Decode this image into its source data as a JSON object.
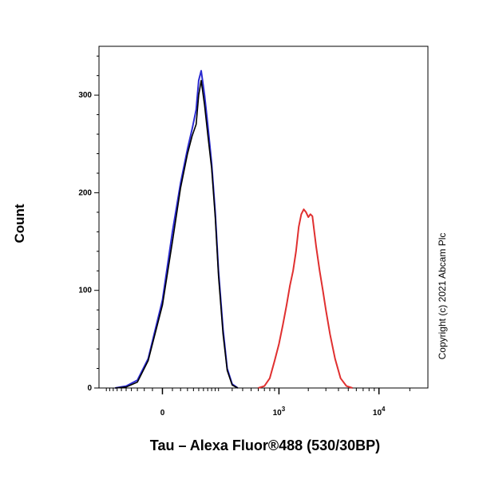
{
  "chart_data": {
    "type": "line",
    "title": "",
    "xlabel": "Tau – Alexa Fluor®488 (530/30BP)",
    "ylabel": "Count",
    "x_scale": "biexponential",
    "ylim": [
      0,
      350
    ],
    "y_ticks": [
      "0",
      "100",
      "200",
      "300"
    ],
    "x_ticks": [
      {
        "base": "0",
        "exp": ""
      },
      {
        "base": "10",
        "exp": "3"
      },
      {
        "base": "10",
        "exp": "4"
      }
    ],
    "annotation": "Copyright (c) 2021 Abcam Plc",
    "grid": false,
    "legend": "none",
    "series": [
      {
        "color": "#2b2bd0",
        "x": [
          -150,
          -100,
          -60,
          -30,
          0,
          20,
          40,
          60,
          75,
          90,
          100,
          110,
          125,
          140,
          160,
          180,
          200,
          230,
          260,
          300,
          350
        ],
        "values": [
          0,
          2,
          8,
          30,
          90,
          160,
          210,
          245,
          265,
          285,
          315,
          325,
          300,
          270,
          230,
          180,
          120,
          60,
          20,
          4,
          0
        ]
      },
      {
        "color": "#000000",
        "x": [
          -150,
          -100,
          -60,
          -30,
          0,
          20,
          40,
          60,
          75,
          90,
          100,
          110,
          125,
          140,
          160,
          180,
          200,
          230,
          260,
          300,
          350
        ],
        "values": [
          0,
          1,
          6,
          28,
          85,
          150,
          205,
          240,
          258,
          270,
          300,
          315,
          290,
          260,
          225,
          175,
          115,
          55,
          18,
          3,
          0
        ]
      },
      {
        "color": "#e03030",
        "x": [
          600,
          700,
          800,
          900,
          1000,
          1100,
          1200,
          1300,
          1400,
          1500,
          1600,
          1700,
          1800,
          1900,
          2000,
          2100,
          2200,
          2300,
          2400,
          2600,
          2800,
          3000,
          3300,
          3700,
          4200,
          4800,
          5500
        ],
        "values": [
          0,
          2,
          10,
          28,
          45,
          65,
          85,
          105,
          120,
          140,
          165,
          178,
          183,
          180,
          175,
          178,
          176,
          160,
          145,
          120,
          100,
          80,
          55,
          30,
          10,
          2,
          0
        ]
      }
    ]
  }
}
